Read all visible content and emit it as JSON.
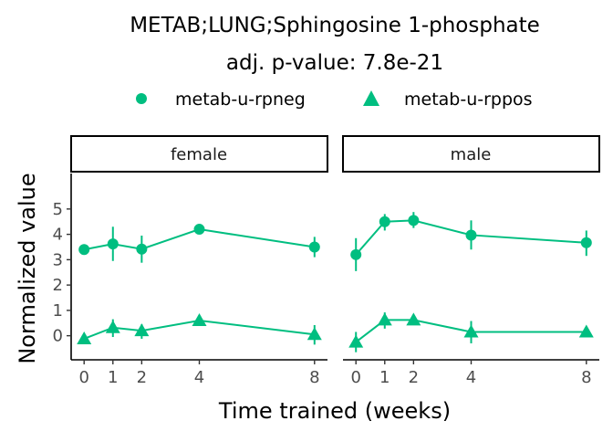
{
  "chart_data": {
    "type": "line",
    "title": "METAB;LUNG;Sphingosine 1-phosphate",
    "subtitle": "adj. p-value: 7.8e-21",
    "xlabel": "Time trained (weeks)",
    "ylabel": "Normalized value",
    "x_ticks": [
      0,
      1,
      2,
      4,
      8
    ],
    "y_ticks": [
      0,
      1,
      2,
      3,
      4,
      5
    ],
    "ylim": [
      -0.95,
      6.4
    ],
    "xlim": [
      -0.45,
      8.45
    ],
    "grid": false,
    "legend_position": "top",
    "color": "#00BE80",
    "legend": [
      {
        "name": "metab-u-rpneg",
        "marker": "circle"
      },
      {
        "name": "metab-u-rppos",
        "marker": "triangle"
      }
    ],
    "panels": [
      {
        "label": "female",
        "series": [
          {
            "name": "metab-u-rpneg",
            "marker": "circle",
            "points": [
              {
                "x": 0,
                "y": 3.4,
                "lo": 3.25,
                "hi": 3.55
              },
              {
                "x": 1,
                "y": 3.62,
                "lo": 2.95,
                "hi": 4.3
              },
              {
                "x": 2,
                "y": 3.42,
                "lo": 2.88,
                "hi": 3.95
              },
              {
                "x": 4,
                "y": 4.2,
                "lo": 4.1,
                "hi": 4.3
              },
              {
                "x": 8,
                "y": 3.5,
                "lo": 3.1,
                "hi": 3.9
              }
            ]
          },
          {
            "name": "metab-u-rppos",
            "marker": "triangle",
            "points": [
              {
                "x": 0,
                "y": -0.12,
                "lo": -0.22,
                "hi": -0.02
              },
              {
                "x": 1,
                "y": 0.32,
                "lo": -0.05,
                "hi": 0.65
              },
              {
                "x": 2,
                "y": 0.2,
                "lo": -0.12,
                "hi": 0.45
              },
              {
                "x": 4,
                "y": 0.6,
                "lo": 0.5,
                "hi": 0.7
              },
              {
                "x": 8,
                "y": 0.05,
                "lo": -0.35,
                "hi": 0.42
              }
            ]
          }
        ]
      },
      {
        "label": "male",
        "series": [
          {
            "name": "metab-u-rpneg",
            "marker": "circle",
            "points": [
              {
                "x": 0,
                "y": 3.2,
                "lo": 2.55,
                "hi": 3.85
              },
              {
                "x": 1,
                "y": 4.5,
                "lo": 4.15,
                "hi": 4.8
              },
              {
                "x": 2,
                "y": 4.55,
                "lo": 4.25,
                "hi": 4.88
              },
              {
                "x": 4,
                "y": 3.97,
                "lo": 3.4,
                "hi": 4.55
              },
              {
                "x": 8,
                "y": 3.67,
                "lo": 3.15,
                "hi": 4.15
              }
            ]
          },
          {
            "name": "metab-u-rppos",
            "marker": "triangle",
            "points": [
              {
                "x": 0,
                "y": -0.25,
                "lo": -0.65,
                "hi": 0.15
              },
              {
                "x": 1,
                "y": 0.62,
                "lo": 0.28,
                "hi": 0.92
              },
              {
                "x": 2,
                "y": 0.62,
                "lo": 0.42,
                "hi": 0.82
              },
              {
                "x": 4,
                "y": 0.15,
                "lo": -0.3,
                "hi": 0.58
              },
              {
                "x": 8,
                "y": 0.15,
                "lo": 0.0,
                "hi": 0.3
              }
            ]
          }
        ]
      }
    ]
  }
}
